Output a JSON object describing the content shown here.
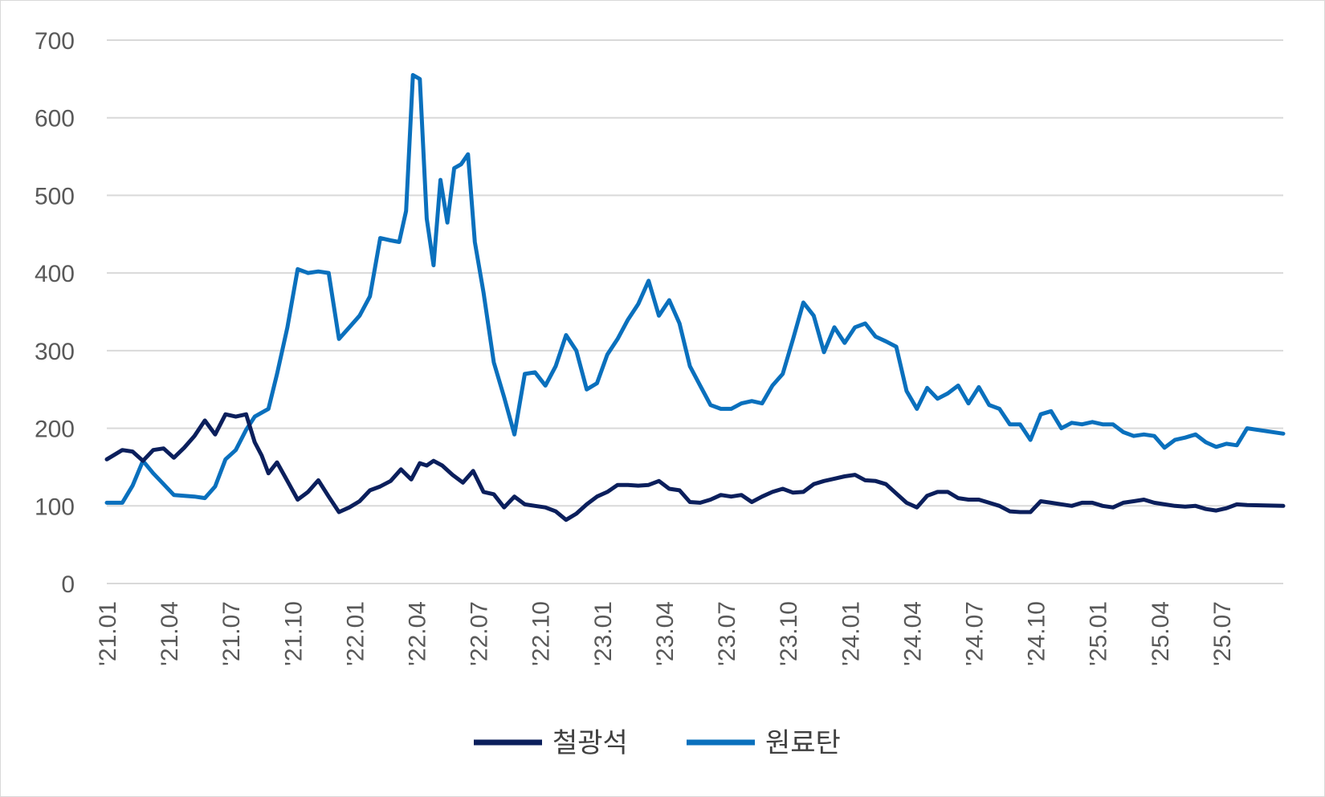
{
  "chart_data": {
    "type": "line",
    "title": "",
    "xlabel": "",
    "ylabel": "",
    "ylim": [
      0,
      700
    ],
    "yticks": [
      0,
      100,
      200,
      300,
      400,
      500,
      600,
      700
    ],
    "x_start": "2021-01",
    "x_end": "2025-09",
    "xtick_labels": [
      "'21.01",
      "'21.04",
      "'21.07",
      "'21.10",
      "'22.01",
      "'22.04",
      "'22.07",
      "'22.10",
      "'23.01",
      "'23.04",
      "'23.07",
      "'23.10",
      "'24.01",
      "'24.04",
      "'24.07",
      "'24.10",
      "'25.01",
      "'25.04",
      "'25.07"
    ],
    "grid": true,
    "legend_position": "bottom-center",
    "series": [
      {
        "name": "철광석",
        "color": "#0b1f5c",
        "points": [
          [
            "2021-01",
            160
          ],
          [
            "2021-01",
            172
          ],
          [
            "2021-02",
            170
          ],
          [
            "2021-02",
            158
          ],
          [
            "2021-03",
            172
          ],
          [
            "2021-03",
            174
          ],
          [
            "2021-04",
            162
          ],
          [
            "2021-04",
            175
          ],
          [
            "2021-05",
            190
          ],
          [
            "2021-05",
            210
          ],
          [
            "2021-06",
            192
          ],
          [
            "2021-06",
            218
          ],
          [
            "2021-07",
            215
          ],
          [
            "2021-07",
            218
          ],
          [
            "2021-08",
            182
          ],
          [
            "2021-08",
            165
          ],
          [
            "2021-08",
            142
          ],
          [
            "2021-09",
            156
          ],
          [
            "2021-09",
            132
          ],
          [
            "2021-10",
            108
          ],
          [
            "2021-10",
            118
          ],
          [
            "2021-11",
            133
          ],
          [
            "2021-11",
            112
          ],
          [
            "2021-12",
            92
          ],
          [
            "2021-12",
            98
          ],
          [
            "2022-01",
            106
          ],
          [
            "2022-01",
            120
          ],
          [
            "2022-02",
            125
          ],
          [
            "2022-02",
            132
          ],
          [
            "2022-03",
            147
          ],
          [
            "2022-03",
            134
          ],
          [
            "2022-04",
            155
          ],
          [
            "2022-04",
            152
          ],
          [
            "2022-04",
            158
          ],
          [
            "2022-05",
            152
          ],
          [
            "2022-05",
            140
          ],
          [
            "2022-06",
            130
          ],
          [
            "2022-06",
            145
          ],
          [
            "2022-07",
            118
          ],
          [
            "2022-07",
            115
          ],
          [
            "2022-08",
            98
          ],
          [
            "2022-08",
            112
          ],
          [
            "2022-09",
            102
          ],
          [
            "2022-09",
            100
          ],
          [
            "2022-10",
            98
          ],
          [
            "2022-10",
            93
          ],
          [
            "2022-11",
            82
          ],
          [
            "2022-11",
            90
          ],
          [
            "2022-12",
            102
          ],
          [
            "2022-12",
            112
          ],
          [
            "2023-01",
            118
          ],
          [
            "2023-01",
            127
          ],
          [
            "2023-02",
            127
          ],
          [
            "2023-02",
            126
          ],
          [
            "2023-03",
            127
          ],
          [
            "2023-03",
            132
          ],
          [
            "2023-04",
            122
          ],
          [
            "2023-04",
            120
          ],
          [
            "2023-05",
            105
          ],
          [
            "2023-05",
            104
          ],
          [
            "2023-06",
            108
          ],
          [
            "2023-06",
            114
          ],
          [
            "2023-07",
            112
          ],
          [
            "2023-07",
            114
          ],
          [
            "2023-08",
            105
          ],
          [
            "2023-08",
            112
          ],
          [
            "2023-09",
            118
          ],
          [
            "2023-09",
            122
          ],
          [
            "2023-10",
            117
          ],
          [
            "2023-10",
            118
          ],
          [
            "2023-11",
            128
          ],
          [
            "2023-11",
            132
          ],
          [
            "2023-12",
            135
          ],
          [
            "2023-12",
            138
          ],
          [
            "2024-01",
            140
          ],
          [
            "2024-01",
            133
          ],
          [
            "2024-02",
            132
          ],
          [
            "2024-02",
            128
          ],
          [
            "2024-03",
            116
          ],
          [
            "2024-03",
            104
          ],
          [
            "2024-04",
            98
          ],
          [
            "2024-04",
            113
          ],
          [
            "2024-05",
            118
          ],
          [
            "2024-05",
            118
          ],
          [
            "2024-06",
            110
          ],
          [
            "2024-06",
            108
          ],
          [
            "2024-07",
            108
          ],
          [
            "2024-07",
            104
          ],
          [
            "2024-08",
            100
          ],
          [
            "2024-08",
            93
          ],
          [
            "2024-09",
            92
          ],
          [
            "2024-09",
            92
          ],
          [
            "2024-10",
            106
          ],
          [
            "2024-10",
            104
          ],
          [
            "2024-11",
            102
          ],
          [
            "2024-11",
            100
          ],
          [
            "2024-12",
            104
          ],
          [
            "2024-12",
            104
          ],
          [
            "2025-01",
            100
          ],
          [
            "2025-01",
            98
          ],
          [
            "2025-02",
            104
          ],
          [
            "2025-02",
            106
          ],
          [
            "2025-03",
            108
          ],
          [
            "2025-03",
            104
          ],
          [
            "2025-04",
            102
          ],
          [
            "2025-04",
            100
          ],
          [
            "2025-05",
            99
          ],
          [
            "2025-05",
            100
          ],
          [
            "2025-06",
            96
          ],
          [
            "2025-06",
            94
          ],
          [
            "2025-07",
            97
          ],
          [
            "2025-07",
            102
          ],
          [
            "2025-08",
            101
          ],
          [
            "2025-08",
            100
          ]
        ]
      },
      {
        "name": "원료탄",
        "color": "#0a70bd",
        "points": [
          [
            "2021-01",
            104
          ],
          [
            "2021-01",
            104
          ],
          [
            "2021-02",
            126
          ],
          [
            "2021-02",
            158
          ],
          [
            "2021-03",
            142
          ],
          [
            "2021-03",
            128
          ],
          [
            "2021-04",
            114
          ],
          [
            "2021-04",
            113
          ],
          [
            "2021-05",
            112
          ],
          [
            "2021-05",
            110
          ],
          [
            "2021-06",
            125
          ],
          [
            "2021-06",
            160
          ],
          [
            "2021-07",
            172
          ],
          [
            "2021-07",
            198
          ],
          [
            "2021-08",
            215
          ],
          [
            "2021-08",
            220
          ],
          [
            "2021-08",
            225
          ],
          [
            "2021-09",
            270
          ],
          [
            "2021-09",
            330
          ],
          [
            "2021-10",
            405
          ],
          [
            "2021-10",
            400
          ],
          [
            "2021-11",
            402
          ],
          [
            "2021-11",
            400
          ],
          [
            "2021-12",
            315
          ],
          [
            "2021-12",
            330
          ],
          [
            "2022-01",
            345
          ],
          [
            "2022-01",
            370
          ],
          [
            "2022-02",
            445
          ],
          [
            "2022-02",
            442
          ],
          [
            "2022-03",
            440
          ],
          [
            "2022-03",
            480
          ],
          [
            "2022-03",
            655
          ],
          [
            "2022-04",
            650
          ],
          [
            "2022-04",
            470
          ],
          [
            "2022-04",
            410
          ],
          [
            "2022-05",
            520
          ],
          [
            "2022-05",
            465
          ],
          [
            "2022-05",
            535
          ],
          [
            "2022-06",
            540
          ],
          [
            "2022-06",
            553
          ],
          [
            "2022-06",
            440
          ],
          [
            "2022-07",
            375
          ],
          [
            "2022-07",
            285
          ],
          [
            "2022-08",
            240
          ],
          [
            "2022-08",
            192
          ],
          [
            "2022-09",
            270
          ],
          [
            "2022-09",
            272
          ],
          [
            "2022-10",
            255
          ],
          [
            "2022-10",
            280
          ],
          [
            "2022-11",
            320
          ],
          [
            "2022-11",
            300
          ],
          [
            "2022-12",
            250
          ],
          [
            "2022-12",
            258
          ],
          [
            "2023-01",
            295
          ],
          [
            "2023-01",
            315
          ],
          [
            "2023-02",
            340
          ],
          [
            "2023-02",
            360
          ],
          [
            "2023-03",
            390
          ],
          [
            "2023-03",
            345
          ],
          [
            "2023-04",
            365
          ],
          [
            "2023-04",
            335
          ],
          [
            "2023-05",
            280
          ],
          [
            "2023-05",
            255
          ],
          [
            "2023-06",
            230
          ],
          [
            "2023-06",
            225
          ],
          [
            "2023-07",
            225
          ],
          [
            "2023-07",
            232
          ],
          [
            "2023-08",
            235
          ],
          [
            "2023-08",
            232
          ],
          [
            "2023-09",
            255
          ],
          [
            "2023-09",
            270
          ],
          [
            "2023-10",
            315
          ],
          [
            "2023-10",
            362
          ],
          [
            "2023-11",
            345
          ],
          [
            "2023-11",
            298
          ],
          [
            "2023-12",
            330
          ],
          [
            "2023-12",
            310
          ],
          [
            "2024-01",
            330
          ],
          [
            "2024-01",
            335
          ],
          [
            "2024-02",
            318
          ],
          [
            "2024-02",
            312
          ],
          [
            "2024-03",
            305
          ],
          [
            "2024-03",
            248
          ],
          [
            "2024-04",
            225
          ],
          [
            "2024-04",
            252
          ],
          [
            "2024-05",
            238
          ],
          [
            "2024-05",
            245
          ],
          [
            "2024-06",
            255
          ],
          [
            "2024-06",
            232
          ],
          [
            "2024-07",
            253
          ],
          [
            "2024-07",
            230
          ],
          [
            "2024-08",
            225
          ],
          [
            "2024-08",
            205
          ],
          [
            "2024-09",
            205
          ],
          [
            "2024-09",
            185
          ],
          [
            "2024-10",
            218
          ],
          [
            "2024-10",
            222
          ],
          [
            "2024-11",
            200
          ],
          [
            "2024-11",
            207
          ],
          [
            "2024-12",
            205
          ],
          [
            "2024-12",
            208
          ],
          [
            "2025-01",
            205
          ],
          [
            "2025-01",
            205
          ],
          [
            "2025-02",
            195
          ],
          [
            "2025-02",
            190
          ],
          [
            "2025-03",
            192
          ],
          [
            "2025-03",
            190
          ],
          [
            "2025-04",
            175
          ],
          [
            "2025-04",
            185
          ],
          [
            "2025-05",
            188
          ],
          [
            "2025-05",
            192
          ],
          [
            "2025-06",
            182
          ],
          [
            "2025-06",
            176
          ],
          [
            "2025-07",
            180
          ],
          [
            "2025-07",
            178
          ],
          [
            "2025-08",
            200
          ],
          [
            "2025-08",
            193
          ]
        ]
      }
    ]
  }
}
